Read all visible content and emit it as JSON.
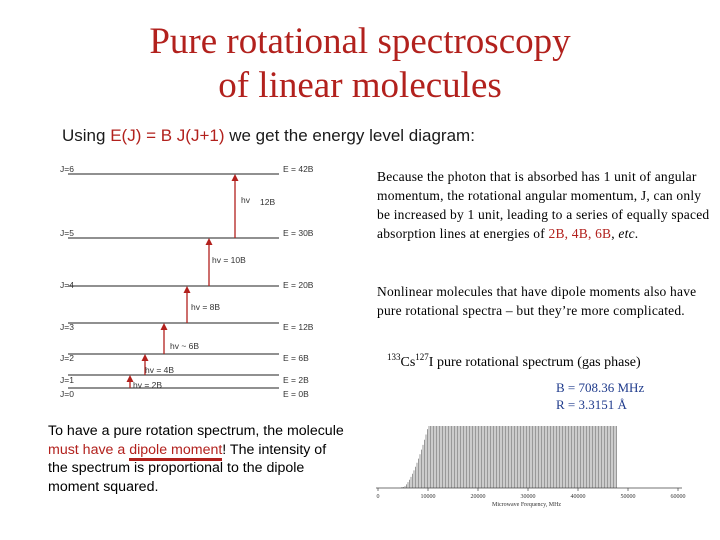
{
  "slide": {
    "title_line1": "Pure rotational spectroscopy",
    "title_line2": "of linear molecules"
  },
  "intro": {
    "prefix": "Using ",
    "formula": "E(J) = B J(J+1)",
    "suffix": " we get the energy level diagram:"
  },
  "energy_diagram": {
    "levels": [
      {
        "j_label": "J=6",
        "e_label": "E = 42B"
      },
      {
        "j_label": "J=5",
        "e_label": "E = 30B"
      },
      {
        "j_label": "J=4",
        "e_label": "E = 20B"
      },
      {
        "j_label": "J=3",
        "e_label": "E = 12B"
      },
      {
        "j_label": "J=2",
        "e_label": "E = 6B"
      },
      {
        "j_label": "J=1",
        "e_label": "E = 2B"
      },
      {
        "j_label": "J=0",
        "e_label": "E = 0B"
      }
    ],
    "transitions": [
      {
        "label": "hv = 2B"
      },
      {
        "label": "hv = 4B"
      },
      {
        "label": "hv ~ 6B"
      },
      {
        "label": "hv = 8B"
      },
      {
        "label": "hv = 10B"
      },
      {
        "label_a": "hv",
        "label_b": "12B"
      }
    ]
  },
  "explanation": {
    "p1_main": "Because the photon that is absorbed has 1 unit of angular momentum, the rotational angular momentum, J, can only be increased by 1 unit, leading to a series of equally spaced absorption lines at energies of ",
    "p1_values": "2B, 4B, 6B",
    "p1_sep": ", ",
    "p1_etc": "etc",
    "p1_end": ".",
    "p2": "Nonlinear molecules that have dipole moments also have pure rotational spectra – but they’re more complicated."
  },
  "spectrum": {
    "mass1": "133",
    "elem1": "Cs",
    "mass2": "127",
    "elem2": "I",
    "title_rest": " pure rotational spectrum (gas phase)",
    "b_value": "B = 708.36 MHz",
    "r_value": "R = 3.3151 Å",
    "xaxis_label": "Microwave Frequency, MHz",
    "x_ticks": [
      "0",
      "10000",
      "20000",
      "30000",
      "40000",
      "50000",
      "60000"
    ]
  },
  "note": {
    "t1": "To have a pure rotation spectrum, the molecule ",
    "t2": "must have a ",
    "t3": "dipole moment",
    "t4": "! The intensity of the spectrum is proportional to the dipole moment squared."
  },
  "colors": {
    "title_red": "#b2211d",
    "b_value_blue": "#1f3b8c"
  }
}
